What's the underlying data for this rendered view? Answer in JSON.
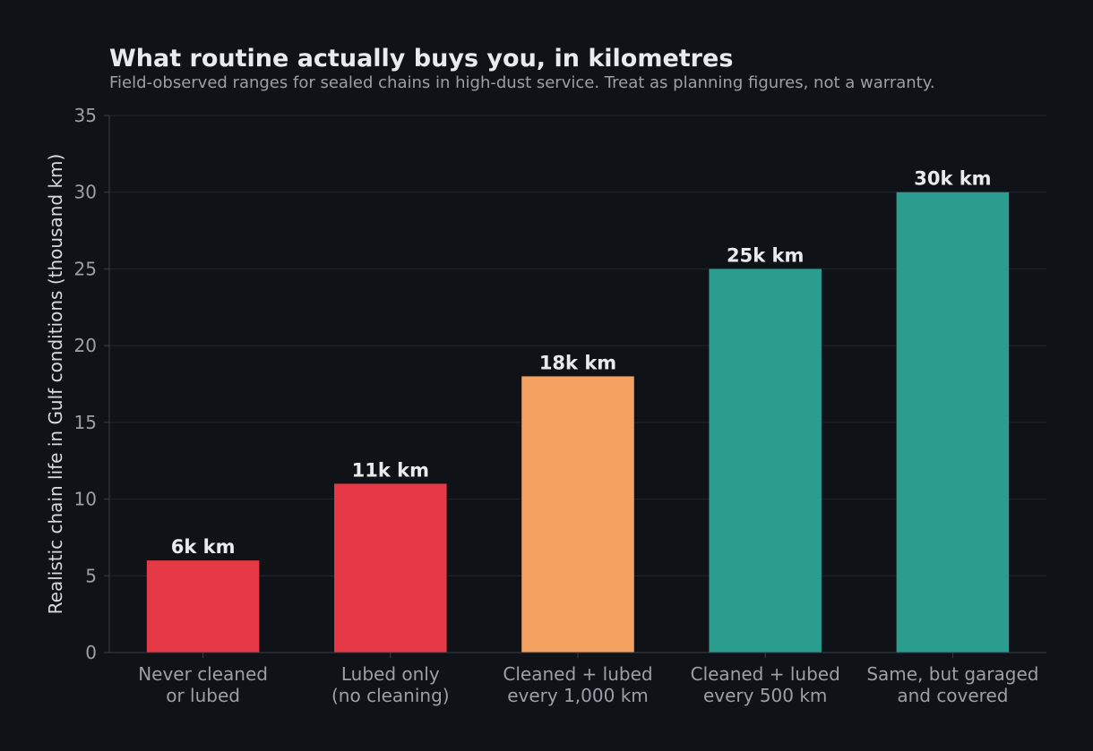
{
  "chart_data": {
    "type": "bar",
    "title": "What routine actually buys you, in kilometres",
    "subtitle": "Field-observed ranges for sealed chains in high-dust service. Treat as planning figures, not a warranty.",
    "xlabel": "",
    "ylabel": "Realistic chain life in Gulf conditions (thousand km)",
    "ylim": [
      0,
      35
    ],
    "yticks": [
      0,
      5,
      10,
      15,
      20,
      25,
      30,
      35
    ],
    "grid": true,
    "categories": [
      [
        "Never cleaned",
        "or lubed"
      ],
      [
        "Lubed only",
        "(no cleaning)"
      ],
      [
        "Cleaned + lubed",
        "every 1,000 km"
      ],
      [
        "Cleaned + lubed",
        "every 500 km"
      ],
      [
        "Same, but garaged",
        "and covered"
      ]
    ],
    "values": [
      6,
      11,
      18,
      25,
      30
    ],
    "data_labels": [
      "6k km",
      "11k km",
      "18k km",
      "25k km",
      "30k km"
    ],
    "bar_colors": [
      "#e63946",
      "#e63946",
      "#f4a261",
      "#2a9d8f",
      "#2a9d8f"
    ],
    "colors": {
      "background": "#0f1318",
      "grid": "#23272d",
      "axis": "#3a3f45",
      "text_primary": "#e8eaed",
      "text_secondary": "#9aa0a6"
    }
  }
}
